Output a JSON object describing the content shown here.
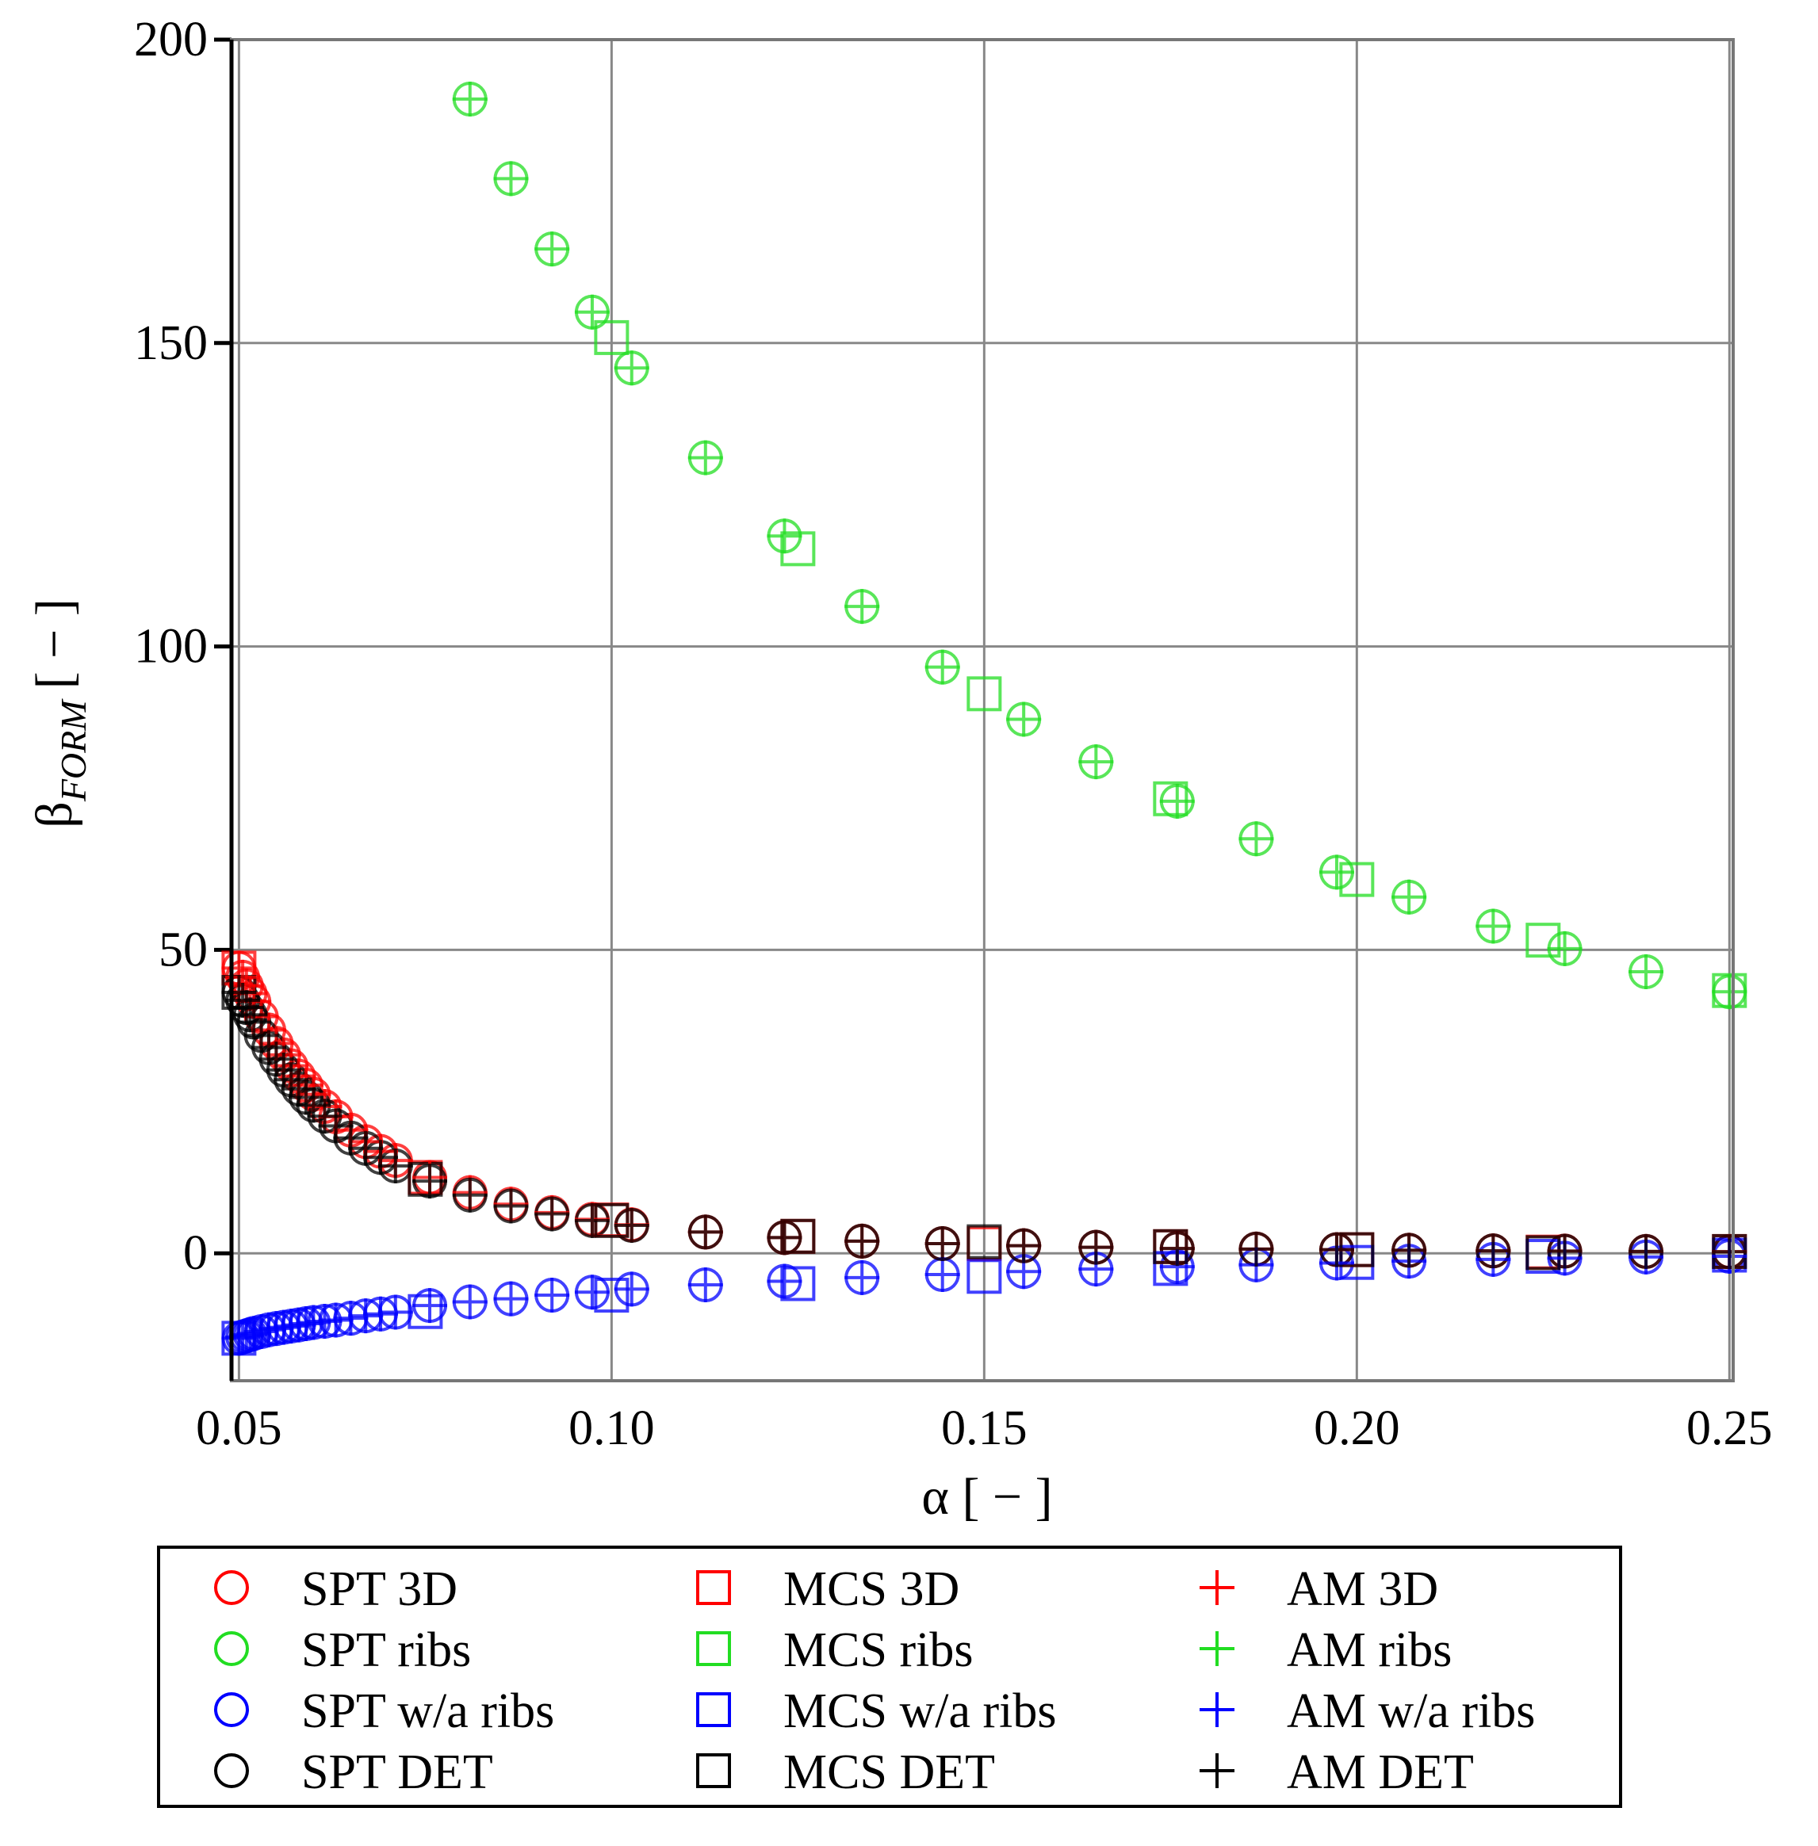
{
  "chart_data": {
    "type": "scatter",
    "xlabel": "α [ − ]",
    "ylabel_symbol": "β",
    "ylabel_subscript": "FORM",
    "ylabel_unit": "[ − ]",
    "xlim": [
      0.049,
      0.2505
    ],
    "ylim": [
      -21,
      200
    ],
    "xticks": [
      0.05,
      0.1,
      0.15,
      0.2,
      0.25
    ],
    "xtick_labels": [
      "0.05",
      "0.10",
      "0.15",
      "0.20",
      "0.25"
    ],
    "yticks": [
      0,
      50,
      100,
      150,
      200
    ],
    "ytick_labels": [
      "0",
      "50",
      "100",
      "150",
      "200"
    ],
    "grid": true,
    "legend_placement": "bottom (below axes)",
    "colors": {
      "3D": "#ff0000",
      "ribs": "#22dd22",
      "w/a ribs": "#0000ff",
      "DET": "#000000"
    },
    "series": [
      {
        "name": "SPT 3D",
        "marker": "circle",
        "color": "#ff0000",
        "x": [
          0.05,
          0.0505,
          0.051,
          0.0515,
          0.052,
          0.053,
          0.054,
          0.055,
          0.056,
          0.057,
          0.058,
          0.059,
          0.06,
          0.0615,
          0.063,
          0.065,
          0.067,
          0.069,
          0.071,
          0.0756,
          0.081,
          0.0865,
          0.092,
          0.0974,
          0.1027,
          0.1126,
          0.1232,
          0.1336,
          0.1444,
          0.1553,
          0.165,
          0.1759,
          0.1865,
          0.1973,
          0.207,
          0.2183,
          0.2279,
          0.2388,
          0.25
        ],
        "y": [
          47,
          45.5,
          44.1,
          42.8,
          41.5,
          39.0,
          36.8,
          34.6,
          32.7,
          30.9,
          29.2,
          27.7,
          26.2,
          24.2,
          22.5,
          20.3,
          18.4,
          16.8,
          15.3,
          12.5,
          10.0,
          8.1,
          6.7,
          5.6,
          4.7,
          3.5,
          2.6,
          2.0,
          1.6,
          1.25,
          1.0,
          0.8,
          0.7,
          0.6,
          0.5,
          0.4,
          0.37,
          0.3,
          0.27
        ]
      },
      {
        "name": "SPT ribs",
        "marker": "circle",
        "color": "#22dd22",
        "x": [
          0.081,
          0.0865,
          0.092,
          0.0974,
          0.1027,
          0.1126,
          0.1232,
          0.1336,
          0.1444,
          0.1553,
          0.165,
          0.1759,
          0.1865,
          0.1973,
          0.207,
          0.2183,
          0.2279,
          0.2388,
          0.25
        ],
        "y": [
          190.2,
          177.1,
          165.5,
          155.1,
          145.9,
          131.1,
          118.2,
          106.6,
          96.6,
          88.0,
          81.0,
          74.5,
          68.3,
          62.8,
          58.7,
          53.9,
          50.2,
          46.4,
          43.1
        ]
      },
      {
        "name": "SPT w/a ribs",
        "marker": "circle",
        "color": "#0000ff",
        "x": [
          0.05,
          0.0505,
          0.051,
          0.0515,
          0.052,
          0.053,
          0.054,
          0.055,
          0.056,
          0.057,
          0.058,
          0.059,
          0.06,
          0.0615,
          0.063,
          0.065,
          0.067,
          0.069,
          0.071,
          0.0756,
          0.081,
          0.0865,
          0.092,
          0.0974,
          0.1027,
          0.1126,
          0.1232,
          0.1336,
          0.1444,
          0.1553,
          0.165,
          0.1759,
          0.1865,
          0.1973,
          0.207,
          0.2183,
          0.2279,
          0.2388,
          0.25
        ],
        "y": [
          -14,
          -13.8,
          -13.6,
          -13.4,
          -13.2,
          -12.9,
          -12.6,
          -12.4,
          -12.2,
          -12.0,
          -11.8,
          -11.6,
          -11.4,
          -11.2,
          -11.0,
          -10.7,
          -10.3,
          -10.0,
          -9.7,
          -8.6,
          -8.0,
          -7.5,
          -6.9,
          -6.4,
          -5.9,
          -5.2,
          -4.6,
          -4.0,
          -3.5,
          -3.0,
          -2.6,
          -2.2,
          -1.9,
          -1.6,
          -1.3,
          -1.0,
          -0.8,
          -0.6,
          -0.5
        ]
      },
      {
        "name": "SPT DET",
        "marker": "circle",
        "color": "#000000",
        "x": [
          0.05,
          0.0505,
          0.051,
          0.0515,
          0.052,
          0.053,
          0.054,
          0.055,
          0.056,
          0.057,
          0.058,
          0.059,
          0.06,
          0.0615,
          0.063,
          0.065,
          0.067,
          0.069,
          0.071,
          0.0756,
          0.081,
          0.0865,
          0.092,
          0.0974,
          0.1027,
          0.1126,
          0.1232,
          0.1336,
          0.1444,
          0.1553,
          0.165,
          0.1759,
          0.1865,
          0.1973,
          0.207,
          0.2183,
          0.2279,
          0.2388,
          0.25
        ],
        "y": [
          43,
          41.7,
          40.5,
          39.3,
          38.1,
          35.9,
          33.9,
          32.0,
          30.2,
          28.6,
          27.1,
          25.7,
          24.4,
          22.6,
          21.0,
          19.0,
          17.3,
          15.8,
          14.4,
          11.9,
          9.6,
          7.8,
          6.5,
          5.4,
          4.6,
          3.5,
          2.6,
          2.0,
          1.6,
          1.25,
          1.0,
          0.8,
          0.7,
          0.6,
          0.5,
          0.4,
          0.35,
          0.3,
          0.25
        ]
      },
      {
        "name": "MCS 3D",
        "marker": "square",
        "color": "#ff0000",
        "x": [
          0.05,
          0.075,
          0.1,
          0.125,
          0.15,
          0.175,
          0.2,
          0.225,
          0.25
        ],
        "y": [
          47,
          12.5,
          5.5,
          2.8,
          1.6,
          1.1,
          0.6,
          0.2,
          0.3
        ]
      },
      {
        "name": "MCS ribs",
        "marker": "square",
        "color": "#22dd22",
        "x": [
          0.1,
          0.125,
          0.15,
          0.175,
          0.2,
          0.225,
          0.25
        ],
        "y": [
          150.9,
          116.1,
          92.2,
          74.9,
          61.6,
          51.6,
          43.3
        ]
      },
      {
        "name": "MCS w/a ribs",
        "marker": "square",
        "color": "#0000ff",
        "x": [
          0.05,
          0.075,
          0.1,
          0.125,
          0.15,
          0.175,
          0.2,
          0.225,
          0.25
        ],
        "y": [
          -14,
          -9.6,
          -6.9,
          -5.0,
          -3.8,
          -2.5,
          -1.5,
          -0.5,
          -0.3
        ]
      },
      {
        "name": "MCS DET",
        "marker": "square",
        "color": "#000000",
        "x": [
          0.05,
          0.075,
          0.1,
          0.125,
          0.15,
          0.175,
          0.2,
          0.225,
          0.25
        ],
        "y": [
          43,
          12.2,
          5.4,
          2.8,
          1.9,
          1.1,
          0.6,
          0.1,
          0.3
        ]
      },
      {
        "name": "AM 3D",
        "marker": "plus",
        "color": "#ff0000",
        "x": [
          0.05,
          0.0505,
          0.051,
          0.0515,
          0.052,
          0.053,
          0.054,
          0.055,
          0.056,
          0.057,
          0.058,
          0.059,
          0.06,
          0.0615,
          0.063,
          0.065,
          0.067,
          0.069,
          0.071,
          0.0756,
          0.081,
          0.0865,
          0.092,
          0.0974,
          0.1027,
          0.1126,
          0.1232,
          0.1336,
          0.1444,
          0.1553,
          0.165,
          0.1759,
          0.1865,
          0.1973,
          0.207,
          0.2183,
          0.2279,
          0.2388,
          0.25
        ],
        "y": [
          47,
          45.5,
          44.1,
          42.8,
          41.5,
          39.0,
          36.8,
          34.6,
          32.7,
          30.9,
          29.2,
          27.7,
          26.2,
          24.2,
          22.5,
          20.3,
          18.4,
          16.8,
          15.3,
          12.5,
          10.0,
          8.1,
          6.7,
          5.6,
          4.7,
          3.5,
          2.6,
          2.0,
          1.6,
          1.25,
          1.0,
          0.8,
          0.7,
          0.6,
          0.5,
          0.4,
          0.37,
          0.3,
          0.27
        ]
      },
      {
        "name": "AM ribs",
        "marker": "plus",
        "color": "#22dd22",
        "x": [
          0.081,
          0.0865,
          0.092,
          0.0974,
          0.1027,
          0.1126,
          0.1232,
          0.1336,
          0.1444,
          0.1553,
          0.165,
          0.1759,
          0.1865,
          0.1973,
          0.207,
          0.2183,
          0.2279,
          0.2388,
          0.25
        ],
        "y": [
          190.2,
          177.1,
          165.5,
          155.1,
          145.9,
          131.1,
          118.2,
          106.6,
          96.6,
          88.0,
          81.0,
          74.5,
          68.3,
          62.8,
          58.7,
          53.9,
          50.2,
          46.4,
          43.1
        ]
      },
      {
        "name": "AM w/a ribs",
        "marker": "plus",
        "color": "#0000ff",
        "x": [
          0.05,
          0.0505,
          0.051,
          0.0515,
          0.052,
          0.053,
          0.054,
          0.055,
          0.056,
          0.057,
          0.058,
          0.059,
          0.06,
          0.0615,
          0.063,
          0.065,
          0.067,
          0.069,
          0.071,
          0.0756,
          0.081,
          0.0865,
          0.092,
          0.0974,
          0.1027,
          0.1126,
          0.1232,
          0.1336,
          0.1444,
          0.1553,
          0.165,
          0.1759,
          0.1865,
          0.1973,
          0.207,
          0.2183,
          0.2279,
          0.2388,
          0.25
        ],
        "y": [
          -14,
          -13.8,
          -13.6,
          -13.4,
          -13.2,
          -12.9,
          -12.6,
          -12.4,
          -12.2,
          -12.0,
          -11.8,
          -11.6,
          -11.4,
          -11.2,
          -11.0,
          -10.7,
          -10.3,
          -10.0,
          -9.7,
          -8.6,
          -8.0,
          -7.5,
          -6.9,
          -6.4,
          -5.9,
          -5.2,
          -4.6,
          -4.0,
          -3.5,
          -3.0,
          -2.6,
          -2.2,
          -1.9,
          -1.6,
          -1.3,
          -1.0,
          -0.8,
          -0.6,
          -0.5
        ]
      },
      {
        "name": "AM DET",
        "marker": "plus",
        "color": "#000000",
        "x": [
          0.05,
          0.0505,
          0.051,
          0.0515,
          0.052,
          0.053,
          0.054,
          0.055,
          0.056,
          0.057,
          0.058,
          0.059,
          0.06,
          0.0615,
          0.063,
          0.065,
          0.067,
          0.069,
          0.071,
          0.0756,
          0.081,
          0.0865,
          0.092,
          0.0974,
          0.1027,
          0.1126,
          0.1232,
          0.1336,
          0.1444,
          0.1553,
          0.165,
          0.1759,
          0.1865,
          0.1973,
          0.207,
          0.2183,
          0.2279,
          0.2388,
          0.25
        ],
        "y": [
          43,
          41.7,
          40.5,
          39.3,
          38.1,
          35.9,
          33.9,
          32.0,
          30.2,
          28.6,
          27.1,
          25.7,
          24.4,
          22.6,
          21.0,
          19.0,
          17.3,
          15.8,
          14.4,
          11.9,
          9.6,
          7.8,
          6.5,
          5.4,
          4.6,
          3.5,
          2.6,
          2.0,
          1.6,
          1.25,
          1.0,
          0.8,
          0.7,
          0.6,
          0.5,
          0.4,
          0.35,
          0.3,
          0.25
        ]
      }
    ]
  }
}
